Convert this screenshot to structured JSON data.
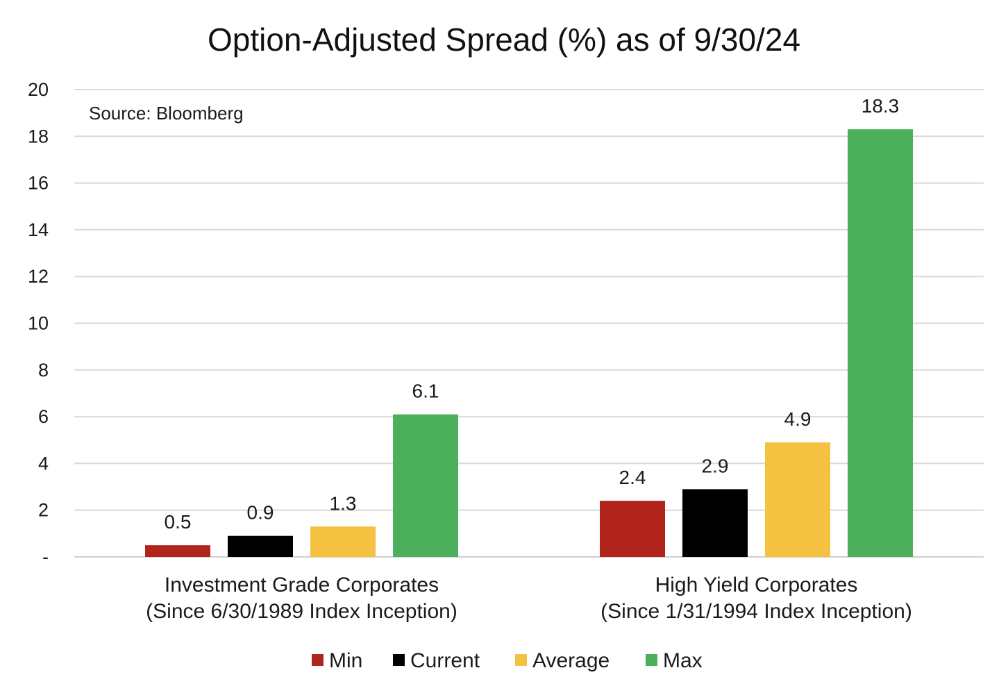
{
  "chart_data": {
    "type": "bar",
    "title": "Option-Adjusted Spread (%) as of 9/30/24",
    "annotation": "Source: Bloomberg",
    "categories": [
      [
        "Investment Grade Corporates",
        "(Since 6/30/1989 Index Inception)"
      ],
      [
        "High Yield Corporates",
        "(Since 1/31/1994 Index Inception)"
      ]
    ],
    "series": [
      {
        "name": "Min",
        "color": "#b0241b",
        "values": [
          0.5,
          2.4
        ]
      },
      {
        "name": "Current",
        "color": "#000000",
        "values": [
          0.9,
          2.9
        ]
      },
      {
        "name": "Average",
        "color": "#f4c140",
        "values": [
          1.3,
          4.9
        ]
      },
      {
        "name": "Max",
        "color": "#4caf5c",
        "values": [
          6.1,
          18.3
        ]
      }
    ],
    "ylim": [
      0,
      20
    ],
    "yticks": [
      0,
      2,
      4,
      6,
      8,
      10,
      12,
      14,
      16,
      18,
      20
    ],
    "ytick_labels": [
      "-",
      "2",
      "4",
      "6",
      "8",
      "10",
      "12",
      "14",
      "16",
      "18",
      "20"
    ],
    "grid": true,
    "legend_position": "bottom",
    "xlabel": "",
    "ylabel": ""
  }
}
